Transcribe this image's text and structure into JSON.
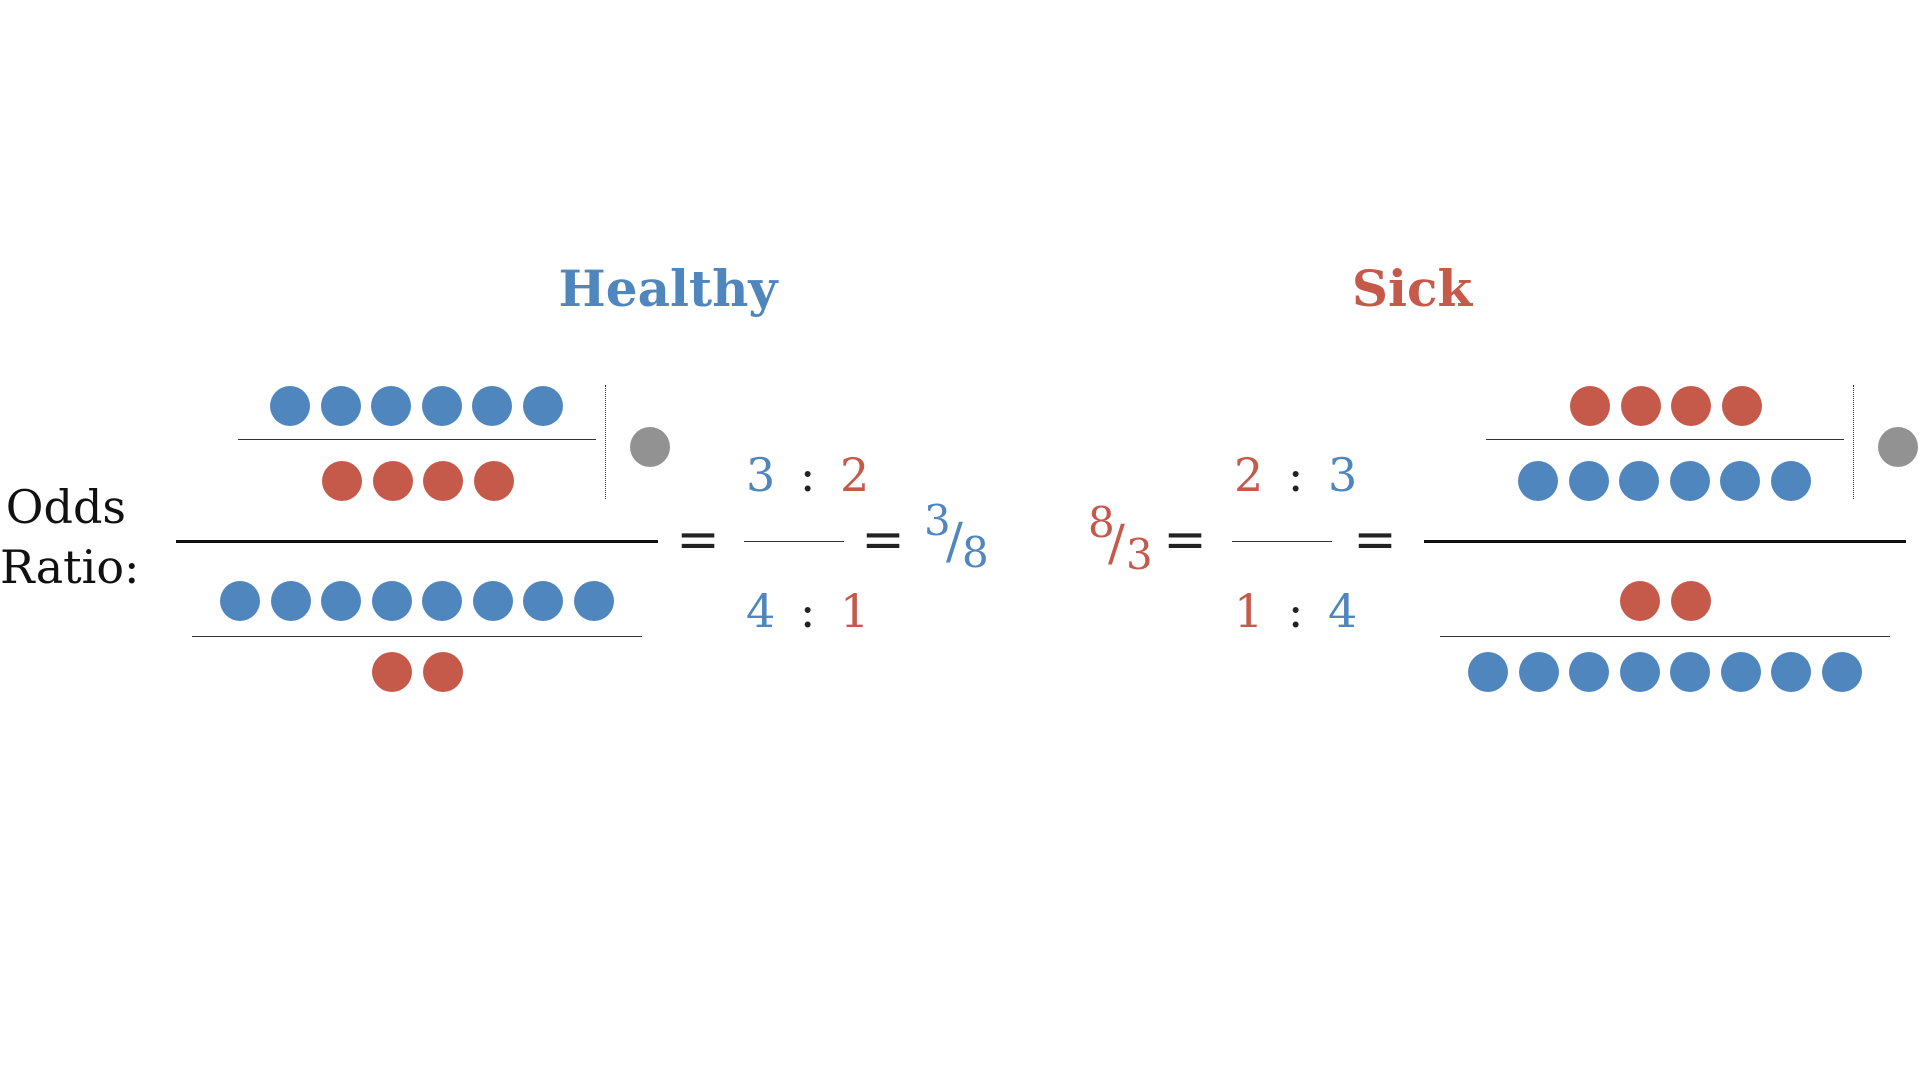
{
  "colors": {
    "healthy": "#4f86bd",
    "sick": "#c55a4b",
    "neutral": "#929292"
  },
  "label": {
    "line1": "Odds",
    "line2": "Ratio:"
  },
  "healthy": {
    "title": "Healthy",
    "odds1": {
      "num_dots": 6,
      "den_dots": 4
    },
    "odds2": {
      "num_dots": 8,
      "den_dots": 2
    },
    "ratio": {
      "a1": "3",
      "colon1": ":",
      "b1": "2",
      "a2": "4",
      "colon2": ":",
      "b2": "1"
    },
    "result": {
      "num": "3",
      "slash": "/",
      "den": "8"
    }
  },
  "sick": {
    "title": "Sick",
    "odds1": {
      "num_dots": 4,
      "den_dots": 6
    },
    "odds2": {
      "num_dots": 2,
      "den_dots": 8
    },
    "ratio": {
      "a1": "2",
      "colon1": ":",
      "b1": "3",
      "a2": "1",
      "colon2": ":",
      "b2": "4"
    },
    "result": {
      "num": "8",
      "slash": "/",
      "den": "3"
    }
  },
  "equals": "="
}
